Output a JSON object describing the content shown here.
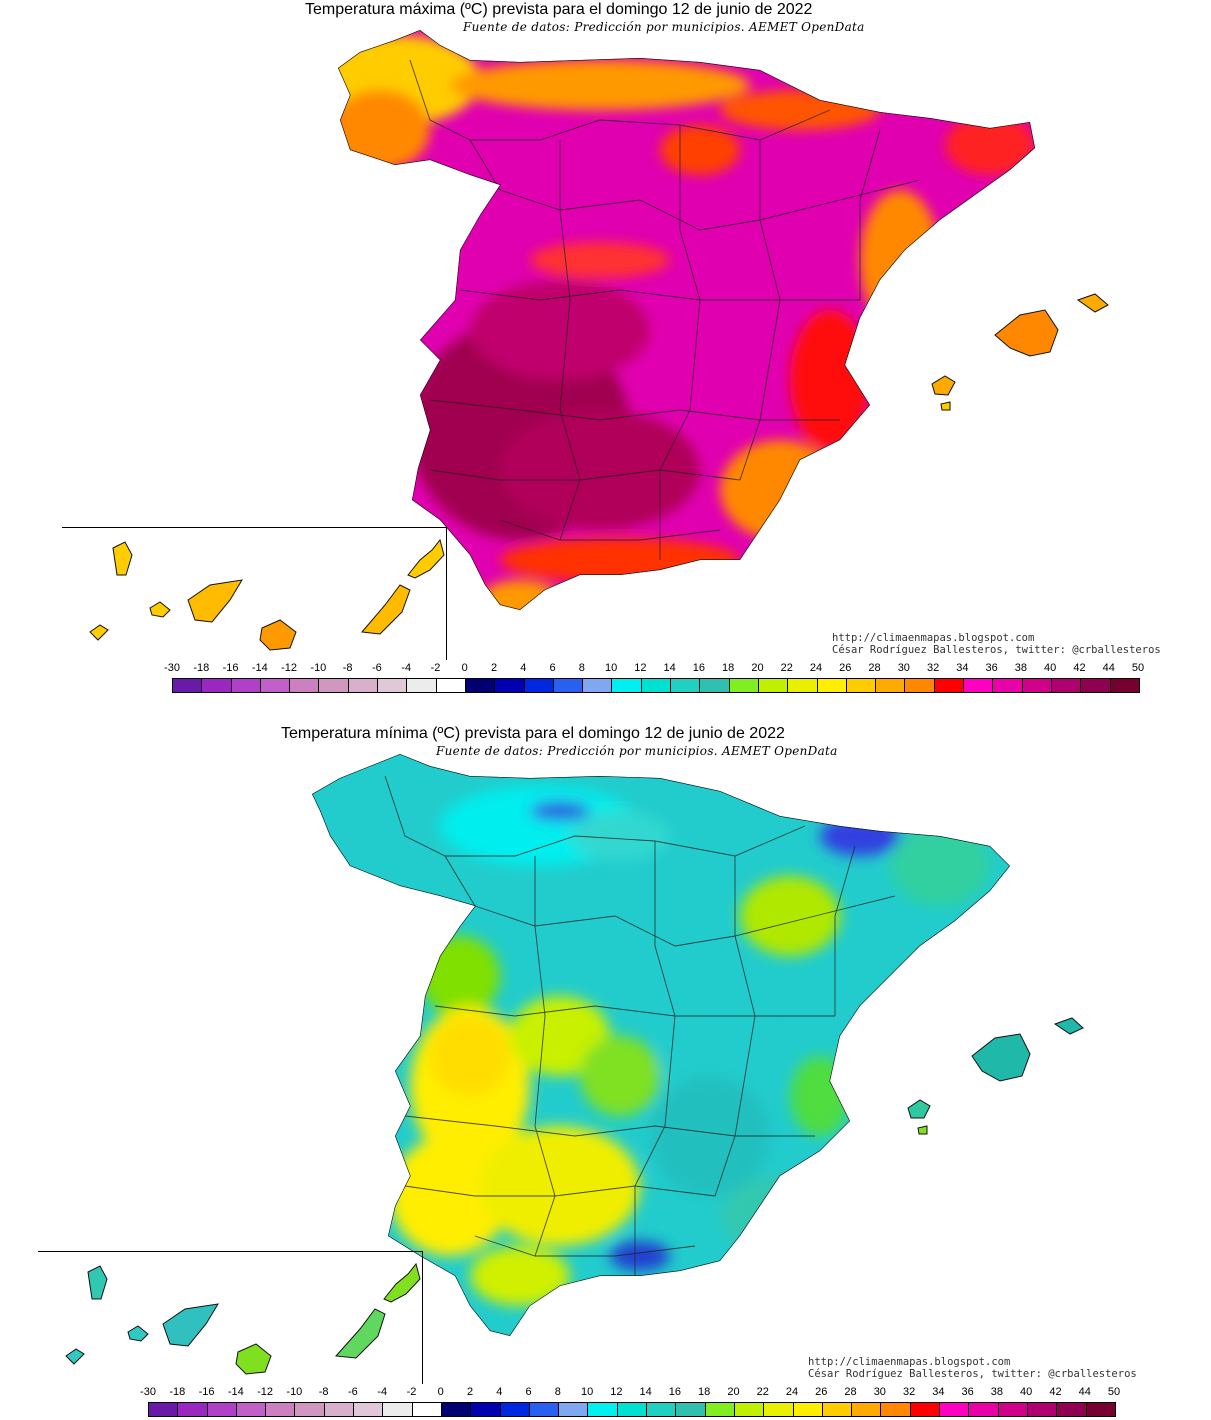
{
  "maps": [
    {
      "id": "max",
      "title": "Temperatura máxima (ºC) prevista para el domingo 12 de junio de 2022",
      "subtitle": "Fuente de datos: Predicción por municipios. AEMET OpenData",
      "credit_url": "http://climaenmapas.blogspot.com",
      "credit_author": "César Rodríguez Ballesteros, twitter: @crballesteros",
      "dominant_colors": [
        "#b0004a",
        "#e000b0",
        "#ff0000",
        "#ff9900",
        "#ffcc00"
      ]
    },
    {
      "id": "min",
      "title": "Temperatura mínima (ºC) prevista para el domingo 12 de junio de 2022",
      "subtitle": "Fuente de datos: Predicción por municipios. AEMET OpenData",
      "credit_url": "http://climaenmapas.blogspot.com",
      "credit_author": "César Rodríguez Ballesteros, twitter: @crballesteros",
      "dominant_colors": [
        "#22cccc",
        "#00eeee",
        "#80e000",
        "#ffee00",
        "#ffcc00"
      ]
    }
  ],
  "legend": {
    "labels": [
      "-30",
      "-18",
      "-16",
      "-14",
      "-12",
      "-10",
      "-8",
      "-6",
      "-4",
      "-2",
      "0",
      "2",
      "4",
      "6",
      "8",
      "10",
      "12",
      "14",
      "16",
      "18",
      "20",
      "22",
      "24",
      "26",
      "28",
      "30",
      "32",
      "34",
      "36",
      "38",
      "40",
      "42",
      "44",
      "50"
    ],
    "colors": [
      "#6a1aa8",
      "#9a28c0",
      "#b040c8",
      "#c060c8",
      "#cc80c0",
      "#d098c0",
      "#d8b0cc",
      "#e0c8d8",
      "#ececec",
      "#ffffff",
      "#000070",
      "#0000b0",
      "#0028e0",
      "#2860f0",
      "#80a8f0",
      "#00f0f0",
      "#00e0d0",
      "#20d0c0",
      "#30c0b0",
      "#80ee20",
      "#c0f000",
      "#e8f000",
      "#ffee00",
      "#ffcc00",
      "#ffaa00",
      "#ff8800",
      "#ff0000",
      "#ff00c0",
      "#e800a8",
      "#d0008a",
      "#b00070",
      "#900050",
      "#780030"
    ]
  }
}
